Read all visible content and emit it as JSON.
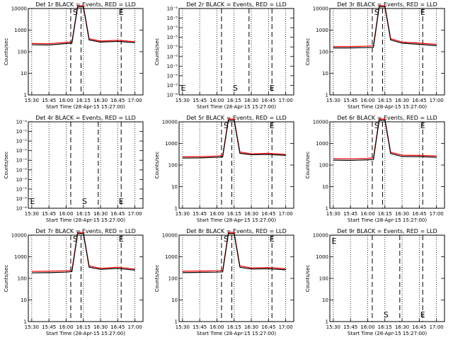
{
  "figure": {
    "xlabel": "Start Time (28-Apr-15 15:27:00)",
    "ylabel": "Counts/sec",
    "xticks": [
      "15:30",
      "15:45",
      "16:00",
      "16:15",
      "16:30",
      "16:45",
      "17:00"
    ],
    "markers": {
      "start": "S",
      "end": "E"
    },
    "colors": {
      "events": "#000000",
      "lld": "#ff0000",
      "axis": "#000000"
    }
  },
  "chart_data": [
    {
      "type": "line",
      "title": "Det 1r BLACK = Events, RED = LLD",
      "yscale": "log",
      "ylim": [
        1,
        10000
      ],
      "yticks": [
        "1",
        "10",
        "100",
        "1000",
        "10000"
      ],
      "x": [
        "15:30",
        "15:45",
        "16:00",
        "16:05",
        "16:10",
        "16:15",
        "16:20",
        "16:30",
        "16:45",
        "17:00"
      ],
      "series": [
        {
          "name": "Events",
          "values": [
            210,
            205,
            240,
            250,
            12000,
            12000,
            350,
            280,
            300,
            260
          ]
        },
        {
          "name": "LLD",
          "values": [
            240,
            235,
            270,
            285,
            14000,
            14000,
            400,
            310,
            340,
            290
          ]
        }
      ],
      "vlines": [
        "16:04",
        "16:13",
        "16:48"
      ],
      "marker_positions": {
        "S": "16:08",
        "E": "16:48"
      }
    },
    {
      "type": "line",
      "title": "Det 2r BLACK = Events, RED = LLD",
      "yscale": "log",
      "ylim": [
        1e-06,
        0.0001
      ],
      "yticks": [
        "10⁻⁶",
        "10⁻⁵",
        "10⁻⁵",
        "10⁻⁵",
        "10⁻⁵",
        "10⁻⁵",
        "10⁻⁵",
        "10⁻⁵",
        "10⁻⁵",
        "10⁻⁵"
      ],
      "x": [],
      "series": [],
      "vlines": [
        "16:04",
        "16:28",
        "16:48"
      ],
      "marker_positions": {
        "S": "16:16",
        "E": "16:48"
      },
      "start_marker": "E"
    },
    {
      "type": "line",
      "title": "Det 3r BLACK = Events, RED = LLD",
      "yscale": "log",
      "ylim": [
        1,
        10000
      ],
      "yticks": [
        "1",
        "10",
        "100",
        "1000",
        "10000"
      ],
      "x": [
        "15:30",
        "15:45",
        "16:00",
        "16:05",
        "16:10",
        "16:15",
        "16:20",
        "16:30",
        "16:45",
        "17:00"
      ],
      "series": [
        {
          "name": "Events",
          "values": [
            150,
            150,
            155,
            160,
            12000,
            12000,
            350,
            250,
            220,
            190
          ]
        },
        {
          "name": "LLD",
          "values": [
            175,
            175,
            180,
            190,
            14000,
            14000,
            400,
            280,
            250,
            220
          ]
        }
      ],
      "vlines": [
        "16:04",
        "16:13",
        "16:48"
      ],
      "marker_positions": {
        "S": "16:08",
        "E": "16:48"
      }
    },
    {
      "type": "line",
      "title": "Det 4r BLACK = Events, RED = LLD",
      "yscale": "log",
      "ylim": [
        1e-06,
        0.0001
      ],
      "yticks": [
        "10⁻⁶",
        "10⁻⁵",
        "10⁻⁵",
        "10⁻⁵",
        "10⁻⁵",
        "10⁻⁵",
        "10⁻⁵",
        "10⁻⁵",
        "10⁻⁵",
        "10⁻⁴"
      ],
      "x": [],
      "series": [],
      "vlines": [
        "16:04",
        "16:28",
        "16:48"
      ],
      "marker_positions": {
        "S": "16:16",
        "E": "16:48"
      },
      "start_marker": "E"
    },
    {
      "type": "line",
      "title": "Det 5r BLACK = Events, RED = LLD",
      "yscale": "log",
      "ylim": [
        1,
        10000
      ],
      "yticks": [
        "1",
        "10",
        "100",
        "1000",
        "10000"
      ],
      "x": [
        "15:30",
        "15:45",
        "16:00",
        "16:05",
        "16:10",
        "16:15",
        "16:20",
        "16:30",
        "16:45",
        "17:00"
      ],
      "series": [
        {
          "name": "Events",
          "values": [
            210,
            215,
            230,
            240,
            12000,
            12000,
            350,
            300,
            310,
            280
          ]
        },
        {
          "name": "LLD",
          "values": [
            240,
            245,
            260,
            275,
            14000,
            14000,
            400,
            330,
            350,
            310
          ]
        }
      ],
      "vlines": [
        "16:04",
        "16:13",
        "16:48"
      ],
      "marker_positions": {
        "S": "16:08",
        "E": "16:48"
      }
    },
    {
      "type": "line",
      "title": "Det 6r BLACK = Events, RED = LLD",
      "yscale": "log",
      "ylim": [
        1,
        10000
      ],
      "yticks": [
        "1",
        "10",
        "100",
        "1000",
        "10000"
      ],
      "x": [
        "15:30",
        "15:45",
        "16:00",
        "16:05",
        "16:10",
        "16:15",
        "16:20",
        "16:30",
        "16:45",
        "17:00"
      ],
      "series": [
        {
          "name": "Events",
          "values": [
            170,
            165,
            175,
            180,
            12000,
            12000,
            340,
            250,
            245,
            230
          ]
        },
        {
          "name": "LLD",
          "values": [
            200,
            195,
            205,
            215,
            14000,
            14000,
            390,
            285,
            280,
            265
          ]
        }
      ],
      "vlines": [
        "16:04",
        "16:13",
        "16:48"
      ],
      "marker_positions": {
        "S": "16:08",
        "E": "16:48"
      }
    },
    {
      "type": "line",
      "title": "Det 7r BLACK = Events, RED = LLD",
      "yscale": "log",
      "ylim": [
        1,
        10000
      ],
      "yticks": [
        "1",
        "10",
        "100",
        "1000",
        "10000"
      ],
      "x": [
        "15:30",
        "15:45",
        "16:00",
        "16:05",
        "16:10",
        "16:15",
        "16:20",
        "16:30",
        "16:45",
        "17:00"
      ],
      "series": [
        {
          "name": "Events",
          "values": [
            180,
            185,
            195,
            205,
            12000,
            12000,
            330,
            260,
            290,
            240
          ]
        },
        {
          "name": "LLD",
          "values": [
            210,
            215,
            225,
            240,
            14000,
            14000,
            380,
            290,
            330,
            270
          ]
        }
      ],
      "vlines": [
        "16:04",
        "16:13",
        "16:48"
      ],
      "marker_positions": {
        "S": "16:08",
        "E": "16:48"
      }
    },
    {
      "type": "line",
      "title": "Det 8r BLACK = Events, RED = LLD",
      "yscale": "log",
      "ylim": [
        1,
        10000
      ],
      "yticks": [
        "1",
        "10",
        "100",
        "1000",
        "10000"
      ],
      "x": [
        "15:30",
        "15:45",
        "16:00",
        "16:05",
        "16:10",
        "16:15",
        "16:20",
        "16:30",
        "16:45",
        "17:00"
      ],
      "series": [
        {
          "name": "Events",
          "values": [
            185,
            190,
            195,
            200,
            12000,
            12000,
            330,
            270,
            280,
            250
          ]
        },
        {
          "name": "LLD",
          "values": [
            215,
            220,
            225,
            235,
            14000,
            14000,
            380,
            300,
            320,
            280
          ]
        }
      ],
      "vlines": [
        "16:04",
        "16:13",
        "16:48"
      ],
      "marker_positions": {
        "S": "16:08",
        "E": "16:48"
      }
    },
    {
      "type": "line",
      "title": "Det 9r BLACK = Events, RED = LLD",
      "yscale": "log",
      "ylim": [
        1,
        10000
      ],
      "yticks": [
        "1",
        "10",
        "100",
        "1000",
        "10000"
      ],
      "x": [],
      "series": [],
      "vlines": [
        "16:04",
        "16:28",
        "16:48"
      ],
      "marker_positions": {
        "S": "16:16",
        "E": "16:48"
      },
      "start_marker": "E"
    }
  ]
}
